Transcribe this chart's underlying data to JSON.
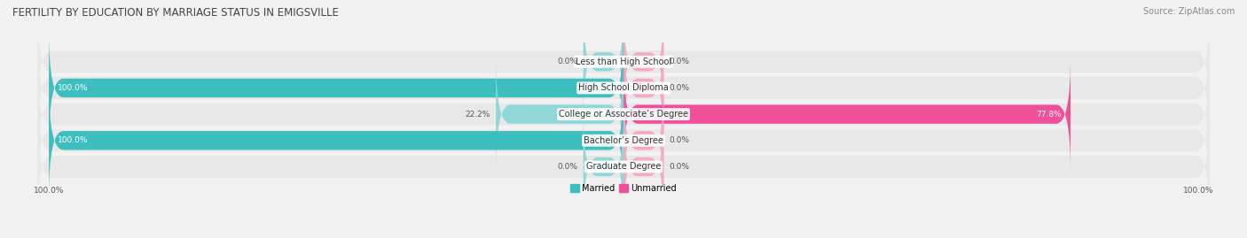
{
  "title": "FERTILITY BY EDUCATION BY MARRIAGE STATUS IN EMIGSVILLE",
  "source": "Source: ZipAtlas.com",
  "categories": [
    "Less than High School",
    "High School Diploma",
    "College or Associate’s Degree",
    "Bachelor’s Degree",
    "Graduate Degree"
  ],
  "married": [
    0.0,
    100.0,
    22.2,
    100.0,
    0.0
  ],
  "unmarried": [
    0.0,
    0.0,
    77.8,
    0.0,
    0.0
  ],
  "married_color_full": "#3dbfbf",
  "married_color_light": "#90d8d8",
  "unmarried_color_full": "#f0509a",
  "unmarried_color_light": "#f5a8c8",
  "bg_color": "#f2f2f2",
  "bar_bg_color": "#e0e0e0",
  "row_bg_color": "#e8e8e8",
  "title_fontsize": 8.5,
  "source_fontsize": 7,
  "label_fontsize": 7,
  "value_fontsize": 6.5,
  "legend_fontsize": 7,
  "axis_tick_fontsize": 6.5,
  "bar_height": 0.72,
  "xlim": 100.0,
  "stub_size": 7.0,
  "axis_label_left": "100.0%",
  "axis_label_right": "100.0%"
}
